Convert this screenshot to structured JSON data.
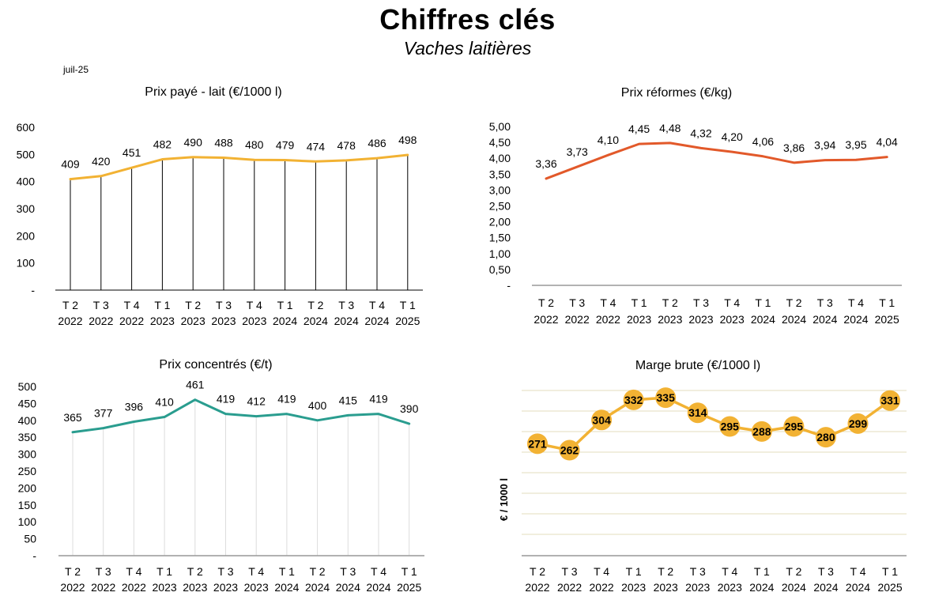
{
  "header": {
    "title": "Chiffres clés",
    "subtitle": "Vaches laitières",
    "date": "juil-25"
  },
  "chart_data": [
    {
      "id": "lait",
      "type": "line",
      "title": "Prix payé - lait (€/1000 l)",
      "categories": [
        "T 2|2022",
        "T 3|2022",
        "T 4|2022",
        "T 1|2023",
        "T 2|2023",
        "T 3|2023",
        "T 4|2023",
        "T 1|2024",
        "T 2|2024",
        "T 3|2024",
        "T 4|2024",
        "T 1|2025"
      ],
      "values": [
        409,
        420,
        451,
        482,
        490,
        488,
        480,
        479,
        474,
        478,
        486,
        498
      ],
      "value_labels": [
        "409",
        "420",
        "451",
        "482",
        "490",
        "488",
        "480",
        "479",
        "474",
        "478",
        "486",
        "498"
      ],
      "ylim": [
        0,
        600
      ],
      "yticks": [
        "-",
        "100",
        "200",
        "300",
        "400",
        "500",
        "600"
      ],
      "drop_lines": true,
      "color": "#F2B233"
    },
    {
      "id": "reformes",
      "type": "line",
      "title": "Prix réformes (€/kg)",
      "categories": [
        "T 2|2022",
        "T 3|2022",
        "T 4|2022",
        "T 1|2023",
        "T 2|2023",
        "T 3|2023",
        "T 4|2023",
        "T 1|2024",
        "T 2|2024",
        "T 3|2024",
        "T 4|2024",
        "T 1|2025"
      ],
      "values": [
        3.36,
        3.73,
        4.1,
        4.45,
        4.48,
        4.32,
        4.2,
        4.06,
        3.86,
        3.94,
        3.95,
        4.04
      ],
      "value_labels": [
        "3,36",
        "3,73",
        "4,10",
        "4,45",
        "4,48",
        "4,32",
        "4,20",
        "4,06",
        "3,86",
        "3,94",
        "3,95",
        "4,04"
      ],
      "ylim": [
        0,
        5
      ],
      "yticks": [
        "-",
        "0,50",
        "1,00",
        "1,50",
        "2,00",
        "2,50",
        "3,00",
        "3,50",
        "4,00",
        "4,50",
        "5,00"
      ],
      "color": "#E2592A"
    },
    {
      "id": "concentres",
      "type": "line",
      "title": "Prix concentrés (€/t)",
      "categories": [
        "T 2|2022",
        "T 3|2022",
        "T 4|2022",
        "T 1|2023",
        "T 2|2023",
        "T 3|2023",
        "T 4|2023",
        "T 1|2024",
        "T 2|2024",
        "T 3|2024",
        "T 4|2024",
        "T 1|2025"
      ],
      "values": [
        365,
        377,
        396,
        410,
        461,
        419,
        412,
        419,
        400,
        415,
        419,
        390
      ],
      "value_labels": [
        "365",
        "377",
        "396",
        "410",
        "461",
        "419",
        "412",
        "419",
        "400",
        "415",
        "419",
        "390"
      ],
      "ylim": [
        0,
        500
      ],
      "yticks": [
        "-",
        "50",
        "100",
        "150",
        "200",
        "250",
        "300",
        "350",
        "400",
        "450",
        "500"
      ],
      "vertical_grid": true,
      "color": "#2A9D8F"
    },
    {
      "id": "marge",
      "type": "line",
      "title": "Marge brute (€/1000 l)",
      "ylabel": "€ / 1000 l",
      "categories": [
        "T 2|2022",
        "T 3|2022",
        "T 4|2022",
        "T 1|2023",
        "T 2|2023",
        "T 3|2023",
        "T 4|2023",
        "T 1|2024",
        "T 2|2024",
        "T 3|2024",
        "T 4|2024",
        "T 1|2025"
      ],
      "values": [
        271,
        262,
        304,
        332,
        335,
        314,
        295,
        288,
        295,
        280,
        299,
        331
      ],
      "value_labels": [
        "271",
        "262",
        "304",
        "332",
        "335",
        "314",
        "295",
        "288",
        "295",
        "280",
        "299",
        "331"
      ],
      "ylim": [
        0,
        350
      ],
      "horizontal_grid": true,
      "markers": true,
      "color": "#F2B233"
    }
  ]
}
